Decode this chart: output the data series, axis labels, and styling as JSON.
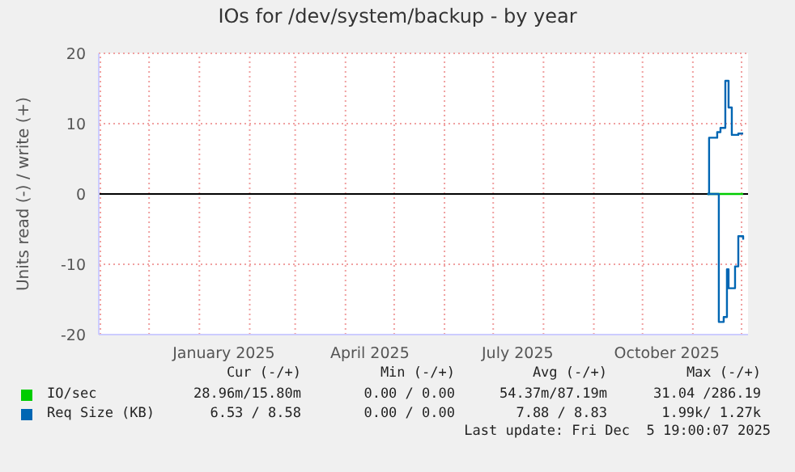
{
  "chart_data": {
    "type": "step",
    "title": "IOs for /dev/system/backup - by year",
    "ylabel": "Units read (-) / write (+)",
    "xlim": [
      "2024-10-31",
      "2025-12-05"
    ],
    "xticks": [
      {
        "value": "2024-11-01",
        "label": null
      },
      {
        "value": "2024-12-01",
        "label": null
      },
      {
        "value": "2025-01-01",
        "label": null
      },
      {
        "value": "2025-01-16",
        "label": "January 2025"
      },
      {
        "value": "2025-02-01",
        "label": null
      },
      {
        "value": "2025-03-01",
        "label": null
      },
      {
        "value": "2025-04-01",
        "label": null
      },
      {
        "value": "2025-04-16",
        "label": "April 2025"
      },
      {
        "value": "2025-05-01",
        "label": null
      },
      {
        "value": "2025-06-01",
        "label": null
      },
      {
        "value": "2025-07-01",
        "label": null
      },
      {
        "value": "2025-07-16",
        "label": "July 2025"
      },
      {
        "value": "2025-08-01",
        "label": null
      },
      {
        "value": "2025-09-01",
        "label": null
      },
      {
        "value": "2025-10-01",
        "label": null
      },
      {
        "value": "2025-10-16",
        "label": "October 2025"
      },
      {
        "value": "2025-11-01",
        "label": null
      },
      {
        "value": "2025-12-01",
        "label": null
      }
    ],
    "ylim": [
      -20,
      20
    ],
    "yticks": [
      -20,
      -10,
      0,
      10,
      20
    ],
    "grid": true,
    "legend": "bottom",
    "ref_lines": [
      {
        "axis": "y",
        "value": 0,
        "color": "#000000"
      }
    ],
    "series": [
      {
        "name": "IO/sec",
        "color": "#00cc00",
        "x": [
          "2025-11-10",
          "2025-11-24",
          "2025-11-26",
          "2025-12-02"
        ],
        "values": [
          0,
          0,
          0,
          0
        ]
      },
      {
        "name": "Req Size (KB)",
        "color": "#0066b3",
        "x": [
          "2025-11-10",
          "2025-11-11",
          "2025-11-16",
          "2025-11-18",
          "2025-11-21",
          "2025-11-23",
          "2025-11-25",
          "2025-11-29",
          "2025-12-02"
        ],
        "values": [
          0,
          8.0,
          8.8,
          9.4,
          16.1,
          12.3,
          8.4,
          8.6,
          8.6
        ]
      },
      {
        "color": "#0066b3",
        "x": [
          "2025-11-10",
          "2025-11-17",
          "2025-11-20",
          "2025-11-22",
          "2025-11-23",
          "2025-11-27",
          "2025-11-29",
          "2025-12-02"
        ],
        "values": [
          0,
          -18.2,
          -17.5,
          -10.7,
          -13.4,
          -10.3,
          -6.0,
          -6.5
        ]
      }
    ],
    "annotations": [
      "Cur (-/+)",
      "Min (-/+)",
      "Avg (-/+)",
      "Max (-/+)",
      "28.96m/15.80m",
      "0.00 / 0.00",
      "54.37m/87.19m",
      "31.04 /286.19",
      "6.53 / 8.58",
      "0.00 / 0.00",
      "7.88 / 8.83",
      "1.99k/ 1.27k",
      "Last update: Fri Dec  5 19:00:07 2025"
    ]
  }
}
